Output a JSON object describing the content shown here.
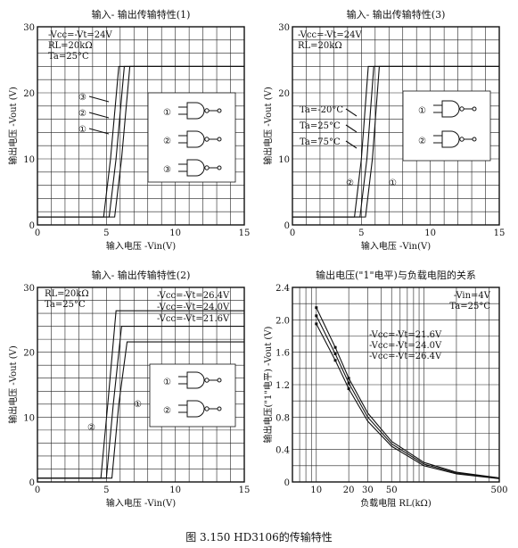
{
  "caption": "图 3.150  HD3106的传输特性",
  "chart_data": [
    {
      "type": "line",
      "title": "输入- 输出传输特性(1)",
      "xlabel": "输入电压 -Vin(V)",
      "ylabel": "输出电压 -Vout (V)",
      "xlim": [
        0,
        15
      ],
      "ylim": [
        0,
        30
      ],
      "xticks": [
        "0",
        "5",
        "10",
        "15"
      ],
      "yticks": [
        "0",
        "10",
        "20",
        "30"
      ],
      "annotations": [
        "-Vcc=-Vt=24V",
        "RL=20kΩ",
        "Ta=25°C"
      ],
      "series": [
        {
          "name": "①",
          "x": [
            0,
            4.8,
            5.3,
            5.9,
            15
          ],
          "y": [
            1.2,
            1.2,
            10,
            24,
            24
          ]
        },
        {
          "name": "②",
          "x": [
            0,
            5.2,
            5.7,
            6.3,
            15
          ],
          "y": [
            1.2,
            1.2,
            10,
            24,
            24
          ]
        },
        {
          "name": "③",
          "x": [
            0,
            5.6,
            6.1,
            6.7,
            15
          ],
          "y": [
            1.2,
            1.2,
            10,
            24,
            24
          ]
        }
      ],
      "legend_marks": [
        "③",
        "②",
        "①"
      ]
    },
    {
      "type": "line",
      "title": "输入- 输出传输特性(3)",
      "xlabel": "输入电压 -Vin(V)",
      "ylabel": "输出电压 -Vout (V)",
      "xlim": [
        0,
        15
      ],
      "ylim": [
        0,
        30
      ],
      "xticks": [
        "0",
        "5",
        "10",
        "15"
      ],
      "yticks": [
        "0",
        "10",
        "20",
        "30"
      ],
      "annotations": [
        "-Vcc=-Vt=24V",
        "RL=20kΩ",
        "Ta=-20°C",
        "Ta=25°C",
        "Ta=75°C"
      ],
      "series": [
        {
          "name": "Ta=-20°C",
          "x": [
            0,
            4.5,
            5.0,
            5.5,
            15
          ],
          "y": [
            1.2,
            1.2,
            10,
            24,
            24
          ]
        },
        {
          "name": "Ta=25°C",
          "x": [
            0,
            4.9,
            5.4,
            5.9,
            15
          ],
          "y": [
            1.2,
            1.2,
            10,
            24,
            24
          ]
        },
        {
          "name": "Ta=75°C",
          "x": [
            0,
            5.3,
            5.8,
            6.3,
            15
          ],
          "y": [
            1.2,
            1.2,
            10,
            24,
            24
          ]
        }
      ],
      "legend_marks": [
        "①",
        "②"
      ]
    },
    {
      "type": "line",
      "title": "输入- 输出传输特性(2)",
      "xlabel": "输入电压 -Vin(V)",
      "ylabel": "输出电压 -Vout (V)",
      "xlim": [
        0,
        15
      ],
      "ylim": [
        0,
        30
      ],
      "xticks": [
        "0",
        "5",
        "10",
        "15"
      ],
      "yticks": [
        "0",
        "10",
        "20",
        "30"
      ],
      "annotations": [
        "RL=20kΩ",
        "Ta=25°C"
      ],
      "series": [
        {
          "name": "-Vcc=-Vt=26.4V",
          "x": [
            0,
            4.6,
            5.1,
            5.7,
            15
          ],
          "y": [
            0.6,
            0.6,
            12,
            26.4,
            26.4
          ]
        },
        {
          "name": "-Vcc=-Vt=24.0V",
          "x": [
            0,
            5.0,
            5.5,
            6.1,
            15
          ],
          "y": [
            0.6,
            0.6,
            12,
            24,
            24
          ]
        },
        {
          "name": "-Vcc=-Vt=21.6V",
          "x": [
            0,
            5.4,
            5.9,
            6.5,
            15
          ],
          "y": [
            0.6,
            0.6,
            12,
            21.6,
            21.6
          ]
        }
      ],
      "legend_marks": [
        "①",
        "②"
      ]
    },
    {
      "type": "line",
      "title": "输出电压(\"1\"电平)与负载电阻的关系",
      "xlabel": "负载电阻 RL(kΩ)",
      "ylabel": "输出电压(\"1\"电平) -Vout (V)",
      "xscale": "log",
      "xlim": [
        6,
        500
      ],
      "ylim": [
        0,
        2.4
      ],
      "xticks": [
        "10",
        "20",
        "30",
        "50",
        "500"
      ],
      "yticks": [
        "0",
        "0.4",
        "0.8",
        "1.2",
        "1.6",
        "2.0",
        "2.4"
      ],
      "annotations": [
        "-Vin=4V",
        "Ta=25°C"
      ],
      "series": [
        {
          "name": "-Vcc=-Vt=21.6V",
          "x": [
            10,
            15,
            20,
            30,
            50,
            100,
            200,
            500
          ],
          "y": [
            1.95,
            1.5,
            1.15,
            0.75,
            0.44,
            0.2,
            0.1,
            0.04
          ]
        },
        {
          "name": "-Vcc=-Vt=24.0V",
          "x": [
            10,
            15,
            20,
            30,
            50,
            100,
            200,
            500
          ],
          "y": [
            2.05,
            1.58,
            1.22,
            0.8,
            0.47,
            0.22,
            0.11,
            0.045
          ]
        },
        {
          "name": "-Vcc=-Vt=26.4V",
          "x": [
            10,
            15,
            20,
            30,
            50,
            100,
            200,
            500
          ],
          "y": [
            2.15,
            1.66,
            1.28,
            0.85,
            0.5,
            0.24,
            0.12,
            0.05
          ]
        }
      ]
    }
  ]
}
